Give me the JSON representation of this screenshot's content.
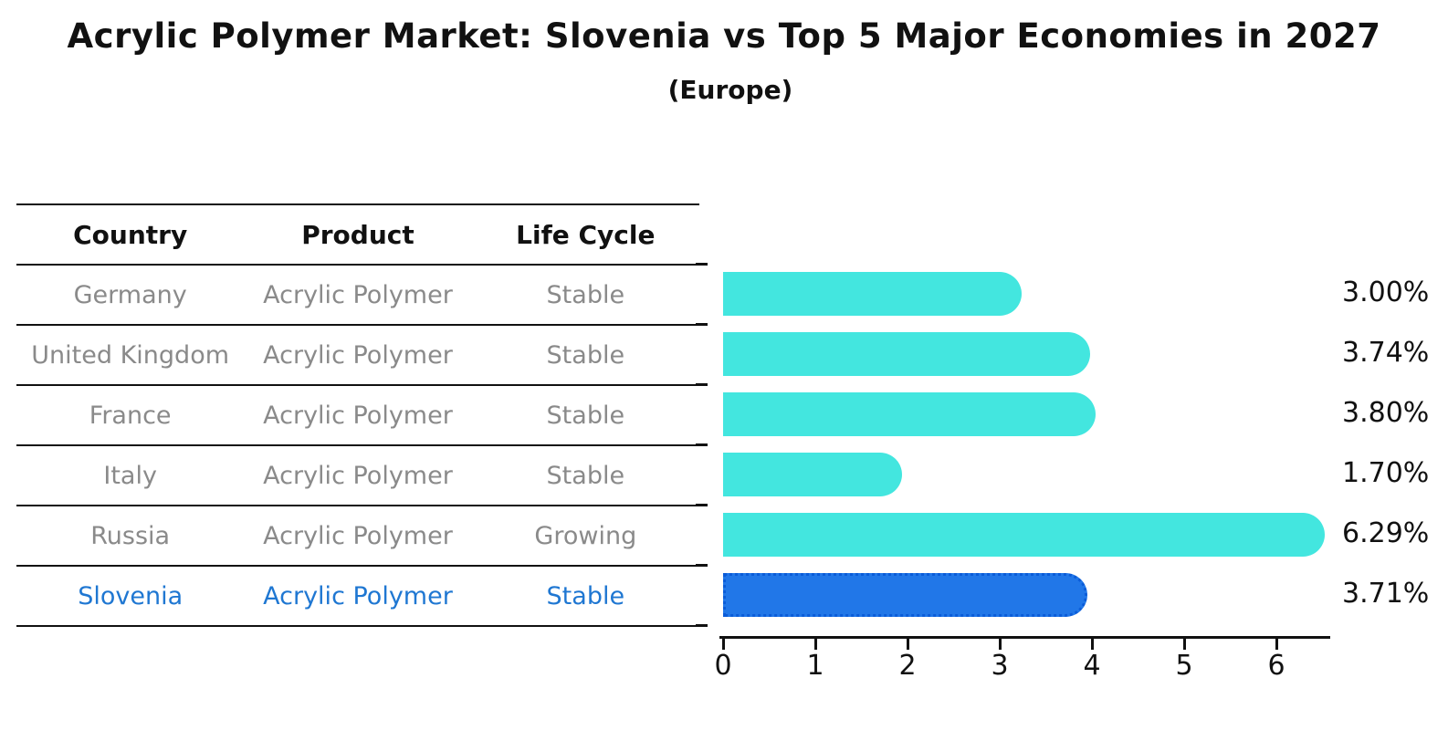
{
  "title": "Acrylic Polymer Market: Slovenia vs Top 5 Major Economies in 2027",
  "subtitle": "(Europe)",
  "table": {
    "headers": [
      "Country",
      "Product",
      "Life Cycle"
    ],
    "rows": [
      {
        "country": "Germany",
        "product": "Acrylic Polymer",
        "life_cycle": "Stable",
        "highlight": false
      },
      {
        "country": "United Kingdom",
        "product": "Acrylic Polymer",
        "life_cycle": "Stable",
        "highlight": false
      },
      {
        "country": "France",
        "product": "Acrylic Polymer",
        "life_cycle": "Stable",
        "highlight": false
      },
      {
        "country": "Italy",
        "product": "Acrylic Polymer",
        "life_cycle": "Stable",
        "highlight": false
      },
      {
        "country": "Russia",
        "product": "Acrylic Polymer",
        "life_cycle": "Growing",
        "highlight": false
      },
      {
        "country": "Slovenia",
        "product": "Acrylic Polymer",
        "life_cycle": "Stable",
        "highlight": true
      }
    ]
  },
  "chart_data": {
    "type": "bar",
    "orientation": "horizontal",
    "title": "Acrylic Polymer Market: Slovenia vs Top 5 Major Economies in 2027",
    "subtitle": "(Europe)",
    "categories": [
      "Germany",
      "United Kingdom",
      "France",
      "Italy",
      "Russia",
      "Slovenia"
    ],
    "values": [
      3.0,
      3.74,
      3.8,
      1.7,
      6.29,
      3.71
    ],
    "value_labels": [
      "3.00%",
      "3.74%",
      "3.80%",
      "1.70%",
      "6.29%",
      "3.71%"
    ],
    "xlabel": "",
    "ylabel": "",
    "xlim": [
      0,
      6.6
    ],
    "xticks": [
      0,
      1,
      2,
      3,
      4,
      5,
      6
    ],
    "grid": false,
    "legend": false,
    "highlight_index": 5,
    "bar_color": "#43e6df",
    "highlight_color": "#2177e8",
    "highlight_border_color": "#0b5cd8",
    "highlight_text_color": "#1f77d2"
  }
}
